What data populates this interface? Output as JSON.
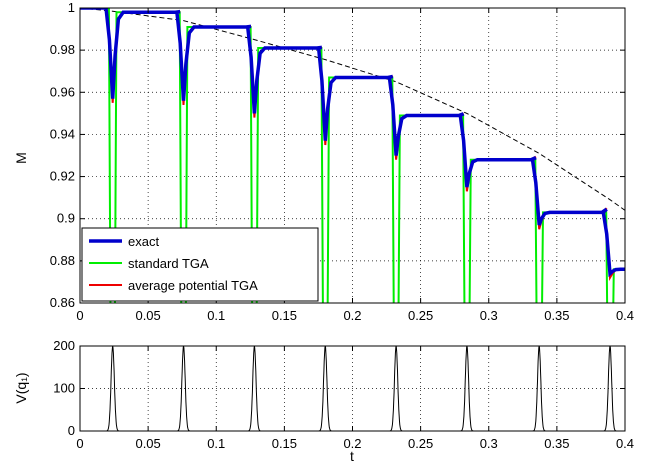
{
  "chart_data": [
    {
      "type": "line",
      "title": "",
      "xlabel": "",
      "ylabel": "M",
      "xlim": [
        0,
        0.4
      ],
      "ylim": [
        0.86,
        1.0
      ],
      "xticks": [
        0,
        0.05,
        0.1,
        0.15,
        0.2,
        0.25,
        0.3,
        0.35,
        0.4
      ],
      "xtick_labels": [
        "0",
        "0.05",
        "0.1",
        "0.15",
        "0.2",
        "0.25",
        "0.3",
        "0.35",
        "0.4"
      ],
      "yticks": [
        0.86,
        0.88,
        0.9,
        0.92,
        0.94,
        0.96,
        0.98,
        1.0
      ],
      "ytick_labels": [
        "0.86",
        "0.88",
        "0.9",
        "0.92",
        "0.94",
        "0.96",
        "0.98",
        "1"
      ],
      "grid": true,
      "legend_position": "bottom-left",
      "plateaus": {
        "t_start": [
          0,
          0.024,
          0.076,
          0.128,
          0.18,
          0.232,
          0.284,
          0.337,
          0.389
        ],
        "level": [
          1.0,
          0.998,
          0.991,
          0.981,
          0.967,
          0.949,
          0.928,
          0.903,
          0.876
        ]
      },
      "kick_times": [
        0.024,
        0.076,
        0.128,
        0.18,
        0.232,
        0.284,
        0.337,
        0.389
      ],
      "exact_dip_minimum": [
        0.957,
        0.956,
        0.95,
        0.937,
        0.93,
        0.915,
        0.897,
        0.874
      ],
      "series": [
        {
          "name": "exact",
          "color": "#0000cc"
        },
        {
          "name": "standard TGA",
          "color": "#00ee00"
        },
        {
          "name": "average potential TGA",
          "color": "#ee0000"
        },
        {
          "color": "#000000",
          "style": "dashed",
          "x": [
            0,
            0.024,
            0.076,
            0.128,
            0.18,
            0.232,
            0.284,
            0.337,
            0.389,
            0.4
          ],
          "y": [
            1.0,
            0.9985,
            0.994,
            0.985,
            0.9755,
            0.965,
            0.95,
            0.931,
            0.909,
            0.904
          ]
        }
      ]
    },
    {
      "type": "line",
      "title": "",
      "xlabel": "t",
      "ylabel": "V(q₁)",
      "xlim": [
        0,
        0.4
      ],
      "ylim": [
        0,
        200
      ],
      "xticks": [
        0,
        0.05,
        0.1,
        0.15,
        0.2,
        0.25,
        0.3,
        0.35,
        0.4
      ],
      "xtick_labels": [
        "0",
        "0.05",
        "0.1",
        "0.15",
        "0.2",
        "0.25",
        "0.3",
        "0.35",
        "0.4"
      ],
      "yticks": [
        0,
        100,
        200
      ],
      "ytick_labels": [
        "0",
        "100",
        "200"
      ],
      "grid": true,
      "pulse_peak": 200,
      "series": [
        {
          "color": "#000000",
          "pulse_times": [
            0.024,
            0.076,
            0.128,
            0.18,
            0.232,
            0.284,
            0.337,
            0.389
          ]
        }
      ]
    }
  ]
}
